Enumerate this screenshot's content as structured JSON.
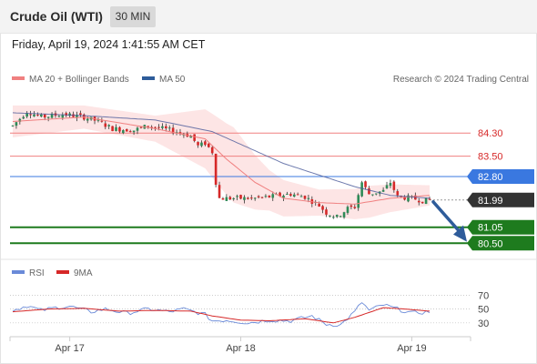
{
  "header": {
    "title": "Crude Oil (WTI)",
    "timeframe": "30 MIN",
    "datetime": "Friday, April 19, 2024 1:41:55 AM CET"
  },
  "legend": {
    "ma20": "MA 20 + Bollinger Bands",
    "ma50": "MA 50",
    "copyright": "Research © 2024 Trading Central",
    "rsi": "RSI",
    "rsi_ma": "9MA"
  },
  "colors": {
    "resistance": "#f08080",
    "pivot": "#3a78e0",
    "support": "#1e7b1e",
    "last": "#333333",
    "ma20": "#f08080",
    "ma50": "#4a5a9a",
    "bollinger": "#fde0e0",
    "up_candle": "#2e8b57",
    "down_candle": "#d62828",
    "arrow": "#2e5c9a",
    "rsi": "#6a8ad8",
    "rsi_ma": "#d62828"
  },
  "chart_data": [
    {
      "type": "candlestick",
      "y_axis_ticks": [],
      "levels": [
        {
          "label": "84.30",
          "value": 84.3,
          "kind": "resistance"
        },
        {
          "label": "83.50",
          "value": 83.5,
          "kind": "resistance"
        },
        {
          "label": "82.80",
          "value": 82.8,
          "kind": "pivot"
        },
        {
          "label": "81.99",
          "value": 81.99,
          "kind": "last"
        },
        {
          "label": "81.05",
          "value": 81.05,
          "kind": "support"
        },
        {
          "label": "80.50",
          "value": 80.5,
          "kind": "support"
        }
      ],
      "x_ticks": [
        {
          "label": "Apr 17",
          "index": 16
        },
        {
          "label": "Apr 18",
          "index": 64
        },
        {
          "label": "Apr 19",
          "index": 112
        }
      ],
      "num_bars": 118,
      "anchors": [
        [
          0,
          84.55
        ],
        [
          4,
          85.05
        ],
        [
          8,
          84.85
        ],
        [
          14,
          84.95
        ],
        [
          20,
          84.85
        ],
        [
          24,
          84.7
        ],
        [
          28,
          84.45
        ],
        [
          34,
          84.4
        ],
        [
          38,
          84.55
        ],
        [
          42,
          84.45
        ],
        [
          46,
          84.35
        ],
        [
          50,
          84.2
        ],
        [
          52,
          83.85
        ],
        [
          54,
          83.95
        ],
        [
          56,
          83.65
        ],
        [
          57,
          82.6
        ],
        [
          58,
          82.05
        ],
        [
          62,
          82.05
        ],
        [
          68,
          82.05
        ],
        [
          72,
          82.1
        ],
        [
          78,
          82.2
        ],
        [
          82,
          82.1
        ],
        [
          86,
          81.8
        ],
        [
          88,
          81.55
        ],
        [
          91,
          81.4
        ],
        [
          94,
          81.7
        ],
        [
          96,
          81.75
        ],
        [
          98,
          82.6
        ],
        [
          100,
          82.2
        ],
        [
          104,
          82.3
        ],
        [
          106,
          82.6
        ],
        [
          108,
          82.1
        ],
        [
          112,
          82.05
        ],
        [
          115,
          81.97
        ],
        [
          117,
          81.99
        ]
      ],
      "ma50_anchors": [
        [
          0,
          85.0
        ],
        [
          20,
          84.9
        ],
        [
          40,
          84.75
        ],
        [
          56,
          84.35
        ],
        [
          66,
          83.8
        ],
        [
          76,
          83.25
        ],
        [
          86,
          82.85
        ],
        [
          96,
          82.45
        ],
        [
          106,
          82.15
        ],
        [
          117,
          82.05
        ]
      ],
      "ma20_anchors": [
        [
          0,
          84.7
        ],
        [
          20,
          84.85
        ],
        [
          40,
          84.45
        ],
        [
          54,
          84.1
        ],
        [
          60,
          83.4
        ],
        [
          68,
          82.6
        ],
        [
          76,
          82.05
        ],
        [
          86,
          81.9
        ],
        [
          96,
          81.85
        ],
        [
          106,
          82.05
        ],
        [
          117,
          82.15
        ]
      ],
      "bollinger_width_anchors": [
        [
          0,
          0.55
        ],
        [
          20,
          0.4
        ],
        [
          40,
          0.45
        ],
        [
          56,
          1.1
        ],
        [
          62,
          1.3
        ],
        [
          72,
          0.7
        ],
        [
          86,
          0.45
        ],
        [
          100,
          0.55
        ],
        [
          117,
          0.35
        ]
      ],
      "forecast_arrow": {
        "from_index": 117,
        "from_value": 81.99,
        "to_value": 80.55
      }
    },
    {
      "type": "line",
      "name": "RSI",
      "y_axis_ticks": [
        {
          "label": "70",
          "value": 70
        },
        {
          "label": "50",
          "value": 50
        },
        {
          "label": "30",
          "value": 30
        }
      ],
      "rsi_anchors": [
        [
          0,
          48
        ],
        [
          4,
          55
        ],
        [
          8,
          48
        ],
        [
          12,
          52
        ],
        [
          16,
          54
        ],
        [
          22,
          46
        ],
        [
          26,
          50
        ],
        [
          32,
          44
        ],
        [
          38,
          50
        ],
        [
          44,
          46
        ],
        [
          48,
          50
        ],
        [
          54,
          42
        ],
        [
          56,
          33
        ],
        [
          60,
          34
        ],
        [
          66,
          30
        ],
        [
          72,
          34
        ],
        [
          78,
          33
        ],
        [
          84,
          40
        ],
        [
          88,
          28
        ],
        [
          92,
          27
        ],
        [
          96,
          46
        ],
        [
          98,
          60
        ],
        [
          100,
          48
        ],
        [
          104,
          56
        ],
        [
          108,
          50
        ],
        [
          112,
          44
        ],
        [
          117,
          46
        ]
      ],
      "rsi_ma_anchors": [
        [
          0,
          46
        ],
        [
          10,
          50
        ],
        [
          20,
          51
        ],
        [
          30,
          47
        ],
        [
          40,
          48
        ],
        [
          50,
          47
        ],
        [
          56,
          40
        ],
        [
          64,
          34
        ],
        [
          72,
          33
        ],
        [
          82,
          36
        ],
        [
          90,
          30
        ],
        [
          96,
          38
        ],
        [
          104,
          52
        ],
        [
          110,
          50
        ],
        [
          117,
          47
        ]
      ]
    }
  ]
}
